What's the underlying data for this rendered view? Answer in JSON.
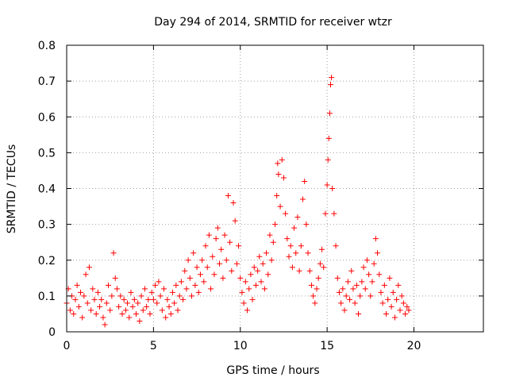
{
  "chart_data": {
    "type": "scatter",
    "title": "Day 294 of 2014, SRMTID for receiver wtzr",
    "xlabel": "GPS time / hours",
    "ylabel": "SRMTID / TECUs",
    "xlim": [
      0,
      24
    ],
    "ylim": [
      0,
      0.8
    ],
    "xticks": [
      0,
      5,
      10,
      15,
      20
    ],
    "xtick_labels": [
      "0",
      "5",
      "10",
      "15",
      "20"
    ],
    "yticks": [
      0,
      0.1,
      0.2,
      0.3,
      0.4,
      0.5,
      0.6,
      0.7,
      0.8
    ],
    "ytick_labels": [
      "0",
      "0.1",
      "0.2",
      "0.3",
      "0.4",
      "0.5",
      "0.6",
      "0.7",
      "0.8"
    ],
    "grid": true,
    "marker": "+",
    "colors": {
      "series": "#ff0000",
      "grid": "#a0a0a0",
      "axis": "#000000"
    },
    "series": [
      {
        "name": "SRMTID",
        "points": [
          [
            0.0,
            0.08
          ],
          [
            0.1,
            0.12
          ],
          [
            0.2,
            0.06
          ],
          [
            0.3,
            0.1
          ],
          [
            0.4,
            0.05
          ],
          [
            0.5,
            0.09
          ],
          [
            0.6,
            0.13
          ],
          [
            0.7,
            0.07
          ],
          [
            0.8,
            0.11
          ],
          [
            0.9,
            0.04
          ],
          [
            1.0,
            0.1
          ],
          [
            1.1,
            0.16
          ],
          [
            1.2,
            0.08
          ],
          [
            1.3,
            0.18
          ],
          [
            1.4,
            0.06
          ],
          [
            1.5,
            0.12
          ],
          [
            1.6,
            0.09
          ],
          [
            1.7,
            0.05
          ],
          [
            1.8,
            0.11
          ],
          [
            1.9,
            0.07
          ],
          [
            2.0,
            0.09
          ],
          [
            2.1,
            0.04
          ],
          [
            2.2,
            0.02
          ],
          [
            2.3,
            0.08
          ],
          [
            2.4,
            0.13
          ],
          [
            2.5,
            0.06
          ],
          [
            2.6,
            0.1
          ],
          [
            2.7,
            0.22
          ],
          [
            2.8,
            0.15
          ],
          [
            2.9,
            0.12
          ],
          [
            3.0,
            0.07
          ],
          [
            3.1,
            0.1
          ],
          [
            3.2,
            0.05
          ],
          [
            3.3,
            0.09
          ],
          [
            3.4,
            0.06
          ],
          [
            3.5,
            0.08
          ],
          [
            3.6,
            0.04
          ],
          [
            3.7,
            0.11
          ],
          [
            3.8,
            0.07
          ],
          [
            3.9,
            0.09
          ],
          [
            4.0,
            0.05
          ],
          [
            4.1,
            0.08
          ],
          [
            4.2,
            0.03
          ],
          [
            4.3,
            0.1
          ],
          [
            4.4,
            0.06
          ],
          [
            4.5,
            0.12
          ],
          [
            4.6,
            0.07
          ],
          [
            4.7,
            0.09
          ],
          [
            4.8,
            0.05
          ],
          [
            4.9,
            0.11
          ],
          [
            5.0,
            0.09
          ],
          [
            5.1,
            0.13
          ],
          [
            5.2,
            0.08
          ],
          [
            5.3,
            0.14
          ],
          [
            5.4,
            0.1
          ],
          [
            5.5,
            0.06
          ],
          [
            5.6,
            0.12
          ],
          [
            5.7,
            0.04
          ],
          [
            5.8,
            0.09
          ],
          [
            5.9,
            0.07
          ],
          [
            6.0,
            0.05
          ],
          [
            6.1,
            0.11
          ],
          [
            6.2,
            0.08
          ],
          [
            6.3,
            0.13
          ],
          [
            6.4,
            0.06
          ],
          [
            6.5,
            0.1
          ],
          [
            6.6,
            0.14
          ],
          [
            6.7,
            0.09
          ],
          [
            6.8,
            0.17
          ],
          [
            6.9,
            0.12
          ],
          [
            7.0,
            0.2
          ],
          [
            7.1,
            0.15
          ],
          [
            7.2,
            0.1
          ],
          [
            7.3,
            0.22
          ],
          [
            7.4,
            0.13
          ],
          [
            7.5,
            0.18
          ],
          [
            7.6,
            0.11
          ],
          [
            7.7,
            0.16
          ],
          [
            7.8,
            0.2
          ],
          [
            7.9,
            0.14
          ],
          [
            8.0,
            0.24
          ],
          [
            8.1,
            0.18
          ],
          [
            8.2,
            0.27
          ],
          [
            8.3,
            0.12
          ],
          [
            8.4,
            0.21
          ],
          [
            8.5,
            0.16
          ],
          [
            8.6,
            0.26
          ],
          [
            8.7,
            0.29
          ],
          [
            8.8,
            0.19
          ],
          [
            8.9,
            0.23
          ],
          [
            9.0,
            0.15
          ],
          [
            9.1,
            0.27
          ],
          [
            9.2,
            0.2
          ],
          [
            9.3,
            0.38
          ],
          [
            9.4,
            0.25
          ],
          [
            9.5,
            0.17
          ],
          [
            9.6,
            0.36
          ],
          [
            9.7,
            0.31
          ],
          [
            9.8,
            0.19
          ],
          [
            9.9,
            0.24
          ],
          [
            10.0,
            0.15
          ],
          [
            10.1,
            0.11
          ],
          [
            10.2,
            0.08
          ],
          [
            10.3,
            0.14
          ],
          [
            10.4,
            0.06
          ],
          [
            10.5,
            0.12
          ],
          [
            10.6,
            0.16
          ],
          [
            10.7,
            0.09
          ],
          [
            10.8,
            0.18
          ],
          [
            10.9,
            0.13
          ],
          [
            11.0,
            0.17
          ],
          [
            11.1,
            0.21
          ],
          [
            11.2,
            0.14
          ],
          [
            11.3,
            0.19
          ],
          [
            11.4,
            0.12
          ],
          [
            11.5,
            0.22
          ],
          [
            11.6,
            0.16
          ],
          [
            11.7,
            0.27
          ],
          [
            11.8,
            0.2
          ],
          [
            11.9,
            0.25
          ],
          [
            12.0,
            0.3
          ],
          [
            12.1,
            0.38
          ],
          [
            12.15,
            0.47
          ],
          [
            12.2,
            0.44
          ],
          [
            12.3,
            0.35
          ],
          [
            12.4,
            0.48
          ],
          [
            12.5,
            0.43
          ],
          [
            12.6,
            0.33
          ],
          [
            12.7,
            0.26
          ],
          [
            12.8,
            0.21
          ],
          [
            12.9,
            0.24
          ],
          [
            13.0,
            0.18
          ],
          [
            13.1,
            0.29
          ],
          [
            13.2,
            0.22
          ],
          [
            13.3,
            0.32
          ],
          [
            13.4,
            0.17
          ],
          [
            13.5,
            0.24
          ],
          [
            13.6,
            0.37
          ],
          [
            13.7,
            0.42
          ],
          [
            13.8,
            0.3
          ],
          [
            13.9,
            0.22
          ],
          [
            14.0,
            0.17
          ],
          [
            14.1,
            0.13
          ],
          [
            14.2,
            0.1
          ],
          [
            14.3,
            0.08
          ],
          [
            14.4,
            0.12
          ],
          [
            14.5,
            0.15
          ],
          [
            14.6,
            0.19
          ],
          [
            14.7,
            0.23
          ],
          [
            14.8,
            0.18
          ],
          [
            14.9,
            0.33
          ],
          [
            15.0,
            0.41
          ],
          [
            15.05,
            0.48
          ],
          [
            15.1,
            0.54
          ],
          [
            15.15,
            0.61
          ],
          [
            15.2,
            0.69
          ],
          [
            15.25,
            0.71
          ],
          [
            15.3,
            0.4
          ],
          [
            15.4,
            0.33
          ],
          [
            15.5,
            0.24
          ],
          [
            15.6,
            0.15
          ],
          [
            15.7,
            0.11
          ],
          [
            15.8,
            0.08
          ],
          [
            15.9,
            0.12
          ],
          [
            16.0,
            0.06
          ],
          [
            16.1,
            0.1
          ],
          [
            16.2,
            0.14
          ],
          [
            16.3,
            0.09
          ],
          [
            16.4,
            0.17
          ],
          [
            16.5,
            0.12
          ],
          [
            16.6,
            0.08
          ],
          [
            16.7,
            0.13
          ],
          [
            16.8,
            0.05
          ],
          [
            16.9,
            0.1
          ],
          [
            17.0,
            0.14
          ],
          [
            17.1,
            0.18
          ],
          [
            17.2,
            0.12
          ],
          [
            17.3,
            0.2
          ],
          [
            17.4,
            0.16
          ],
          [
            17.5,
            0.1
          ],
          [
            17.6,
            0.14
          ],
          [
            17.7,
            0.19
          ],
          [
            17.8,
            0.26
          ],
          [
            17.9,
            0.22
          ],
          [
            18.0,
            0.16
          ],
          [
            18.1,
            0.11
          ],
          [
            18.2,
            0.08
          ],
          [
            18.3,
            0.13
          ],
          [
            18.4,
            0.05
          ],
          [
            18.5,
            0.09
          ],
          [
            18.6,
            0.15
          ],
          [
            18.7,
            0.07
          ],
          [
            18.8,
            0.11
          ],
          [
            18.9,
            0.04
          ],
          [
            19.0,
            0.09
          ],
          [
            19.1,
            0.13
          ],
          [
            19.2,
            0.06
          ],
          [
            19.3,
            0.1
          ],
          [
            19.4,
            0.08
          ],
          [
            19.5,
            0.05
          ],
          [
            19.6,
            0.07
          ],
          [
            19.7,
            0.06
          ]
        ]
      }
    ]
  }
}
